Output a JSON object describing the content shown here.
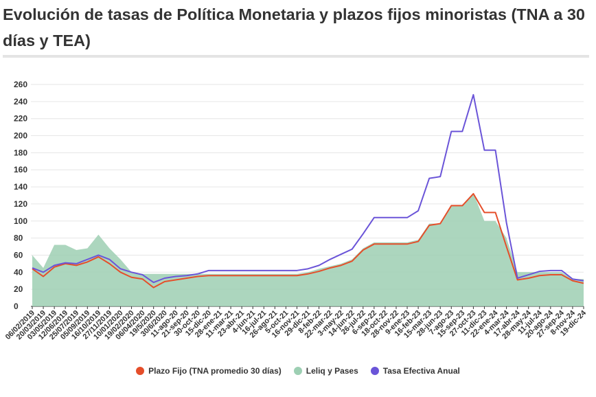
{
  "title": "Evolución de tasas de Política Monetaria y plazos fijos minoristas (TNA a 30 días y TEA)",
  "chart_data": {
    "type": "line",
    "title": "Evolución de tasas de Política Monetaria y plazos fijos minoristas (TNA a 30 días y TEA)",
    "ylim": [
      0,
      260
    ],
    "yticks": [
      0,
      20,
      40,
      60,
      80,
      100,
      120,
      140,
      160,
      180,
      200,
      220,
      240,
      260
    ],
    "grid": true,
    "legend_position": "bottom",
    "x_tick_labels": [
      "06/02/2019",
      "20/03/2019",
      "03/05/2019",
      "12/06/2019",
      "25/07/2019",
      "05/09/2019",
      "16/10/2019",
      "27/11/2019",
      "10/01/2020",
      "19/02/2020",
      "06/04/2020",
      "19/5/2020",
      "30/6/2020",
      "11-ago-20",
      "21-sep-20",
      "30-oct-20",
      "15-dic-20",
      "28-ene-21",
      "11-mar-21",
      "23-abr-21",
      "4-jun-21",
      "16-jul-21",
      "26-ago-21",
      "5-oct-21",
      "16-nov-21",
      "29-dic-21",
      "8-feb-22",
      "22-mar-22",
      "3-may-22",
      "14-jun-22",
      "26-jul-22",
      "6-sep-22",
      "18-oct-22",
      "28-nov-22",
      "9-ene-23",
      "16-feb-23",
      "15-mar-23",
      "28-jun-23",
      "7-ago-23",
      "15-sep-23",
      "27-oct-23",
      "11-dic-23",
      "22-ene-24",
      "4-mar-24",
      "17-abr-24",
      "28-may-24",
      "11-jul-24",
      "20-ago-24",
      "27-sep-24",
      "8-nov-24",
      "19-dic-24"
    ],
    "x": [
      "06/02/2019",
      "20/03/2019",
      "03/05/2019",
      "12/06/2019",
      "25/07/2019",
      "05/09/2019",
      "16/10/2019",
      "27/11/2019",
      "10/01/2020",
      "19/02/2020",
      "06/04/2020",
      "19/5/2020",
      "30/6/2020",
      "11-ago-20",
      "21-sep-20",
      "30-oct-20",
      "15-dic-20",
      "28-ene-21",
      "11-mar-21",
      "23-abr-21",
      "4-jun-21",
      "16-jul-21",
      "26-ago-21",
      "5-oct-21",
      "16-nov-21",
      "29-dic-21",
      "8-feb-22",
      "22-mar-22",
      "3-may-22",
      "14-jun-22",
      "26-jul-22",
      "6-sep-22",
      "18-oct-22",
      "28-nov-22",
      "9-ene-23",
      "16-feb-23",
      "15-mar-23",
      "28-jun-23",
      "7-ago-23",
      "15-sep-23",
      "27-oct-23",
      "11-dic-23",
      "22-ene-24",
      "4-mar-24",
      "17-abr-24",
      "28-may-24",
      "11-jul-24",
      "20-ago-24",
      "27-sep-24",
      "8-nov-24",
      "19-dic-24"
    ],
    "series": [
      {
        "name": "Plazo Fijo (TNA promedio 30 días)",
        "color": "#e54e2a",
        "style": "line",
        "values": [
          44,
          35,
          46,
          50,
          48,
          52,
          58,
          50,
          40,
          34,
          32,
          22,
          29,
          31,
          33,
          35,
          36,
          36,
          36,
          36,
          36,
          36,
          36,
          36,
          36,
          38,
          41,
          45,
          48,
          53,
          66,
          73,
          73,
          73,
          73,
          76,
          95,
          97,
          118,
          118,
          132,
          110,
          110,
          70,
          31,
          33,
          36,
          37,
          37,
          30,
          27
        ]
      },
      {
        "name": "Leliq y Pases",
        "color": "#9dcfb3",
        "style": "area",
        "values": [
          60,
          45,
          72,
          72,
          66,
          68,
          84,
          68,
          55,
          40,
          38,
          38,
          38,
          38,
          38,
          38,
          38,
          38,
          38,
          38,
          38,
          38,
          38,
          38,
          38,
          40,
          44,
          47,
          50,
          55,
          68,
          75,
          75,
          75,
          75,
          78,
          97,
          97,
          118,
          118,
          133,
          100,
          100,
          80,
          40,
          40,
          40,
          40,
          40,
          32,
          32
        ]
      },
      {
        "name": "Tasa Efectiva Anual",
        "color": "#6a54d8",
        "style": "line",
        "values": [
          45,
          40,
          48,
          51,
          50,
          55,
          60,
          55,
          44,
          40,
          37,
          28,
          33,
          35,
          36,
          38,
          42,
          42,
          42,
          42,
          42,
          42,
          42,
          42,
          42,
          44,
          48,
          55,
          61,
          67,
          85,
          104,
          104,
          104,
          104,
          112,
          150,
          152,
          205,
          205,
          248,
          183,
          183,
          98,
          33,
          37,
          41,
          42,
          42,
          32,
          30
        ]
      }
    ]
  }
}
